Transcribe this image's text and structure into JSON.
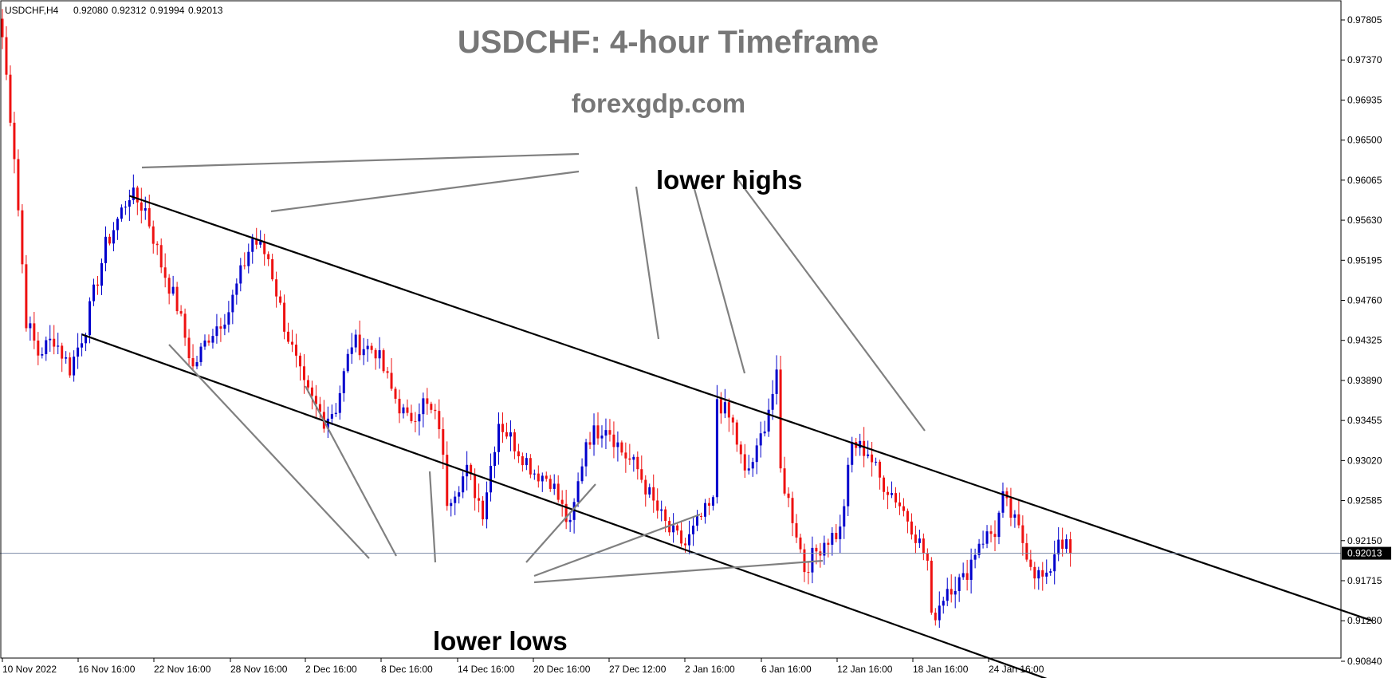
{
  "chart_data": {
    "type": "candlestick",
    "symbol_header": "USDCHF,H4",
    "ohlc_header": [
      "0.92080",
      "0.92312",
      "0.91994",
      "0.92013"
    ],
    "title": "USDCHF: 4-hour Timeframe",
    "subtitle": "forexgdp.com",
    "annotations": [
      "lower highs",
      "lower lows"
    ],
    "ylim": [
      0.9065,
      0.981
    ],
    "y_ticks": [
      "0.97805",
      "0.97370",
      "0.96935",
      "0.96500",
      "0.96065",
      "0.95630",
      "0.95195",
      "0.94760",
      "0.94325",
      "0.93890",
      "0.93455",
      "0.93020",
      "0.92585",
      "0.92150",
      "0.91715",
      "0.91280",
      "0.90840"
    ],
    "x_ticks": [
      "10 Nov 2022",
      "16 Nov 16:00",
      "22 Nov 16:00",
      "28 Nov 16:00",
      "2 Dec 16:00",
      "8 Dec 16:00",
      "14 Dec 16:00",
      "20 Dec 16:00",
      "27 Dec 12:00",
      "2 Jan 16:00",
      "6 Jan 16:00",
      "12 Jan 16:00",
      "18 Jan 16:00",
      "24 Jan 16:00"
    ],
    "current_price": "0.92013",
    "candle_count": 270,
    "anchors": [
      [
        0,
        0.9762
      ],
      [
        3,
        0.9635
      ],
      [
        6,
        0.9455
      ],
      [
        9,
        0.9418
      ],
      [
        13,
        0.9435
      ],
      [
        17,
        0.9402
      ],
      [
        21,
        0.9448
      ],
      [
        26,
        0.9535
      ],
      [
        32,
        0.9592
      ],
      [
        36,
        0.9575
      ],
      [
        40,
        0.9515
      ],
      [
        44,
        0.947
      ],
      [
        48,
        0.9402
      ],
      [
        52,
        0.9438
      ],
      [
        57,
        0.9465
      ],
      [
        63,
        0.9543
      ],
      [
        67,
        0.9522
      ],
      [
        71,
        0.945
      ],
      [
        76,
        0.938
      ],
      [
        81,
        0.9347
      ],
      [
        84,
        0.936
      ],
      [
        88,
        0.943
      ],
      [
        94,
        0.9422
      ],
      [
        98,
        0.9378
      ],
      [
        102,
        0.9345
      ],
      [
        106,
        0.9365
      ],
      [
        110,
        0.9342
      ],
      [
        112,
        0.926
      ],
      [
        117,
        0.929
      ],
      [
        121,
        0.9248
      ],
      [
        125,
        0.9345
      ],
      [
        129,
        0.932
      ],
      [
        134,
        0.929
      ],
      [
        138,
        0.9282
      ],
      [
        143,
        0.9228
      ],
      [
        147,
        0.9325
      ],
      [
        152,
        0.9342
      ],
      [
        156,
        0.9312
      ],
      [
        160,
        0.9292
      ],
      [
        164,
        0.9255
      ],
      [
        168,
        0.9225
      ],
      [
        172,
        0.921
      ],
      [
        176,
        0.924
      ],
      [
        179,
        0.9255
      ],
      [
        180,
        0.937
      ],
      [
        184,
        0.934
      ],
      [
        187,
        0.9285
      ],
      [
        190,
        0.931
      ],
      [
        193,
        0.936
      ],
      [
        195,
        0.939
      ],
      [
        196,
        0.929
      ],
      [
        200,
        0.9225
      ],
      [
        202,
        0.9185
      ],
      [
        207,
        0.9215
      ],
      [
        211,
        0.9225
      ],
      [
        214,
        0.932
      ],
      [
        218,
        0.9312
      ],
      [
        221,
        0.9282
      ],
      [
        225,
        0.9262
      ],
      [
        229,
        0.9232
      ],
      [
        233,
        0.9192
      ],
      [
        234,
        0.9128
      ],
      [
        238,
        0.9165
      ],
      [
        242,
        0.9172
      ],
      [
        246,
        0.9215
      ],
      [
        250,
        0.9225
      ],
      [
        252,
        0.926
      ],
      [
        256,
        0.9225
      ],
      [
        260,
        0.9182
      ],
      [
        263,
        0.917
      ],
      [
        266,
        0.922
      ],
      [
        269,
        0.9201
      ]
    ],
    "channel_upper": [
      [
        32,
        0.95895
      ],
      [
        345,
        0.9128
      ]
    ],
    "channel_lower": [
      [
        20,
        0.9439
      ],
      [
        263,
        0.9065
      ]
    ],
    "colors": {
      "bull": "#0000cc",
      "bear": "#ee1111",
      "channel": "#000000",
      "arrow": "#808080",
      "title": "#777777",
      "price_line": "#7a8aa6"
    }
  }
}
